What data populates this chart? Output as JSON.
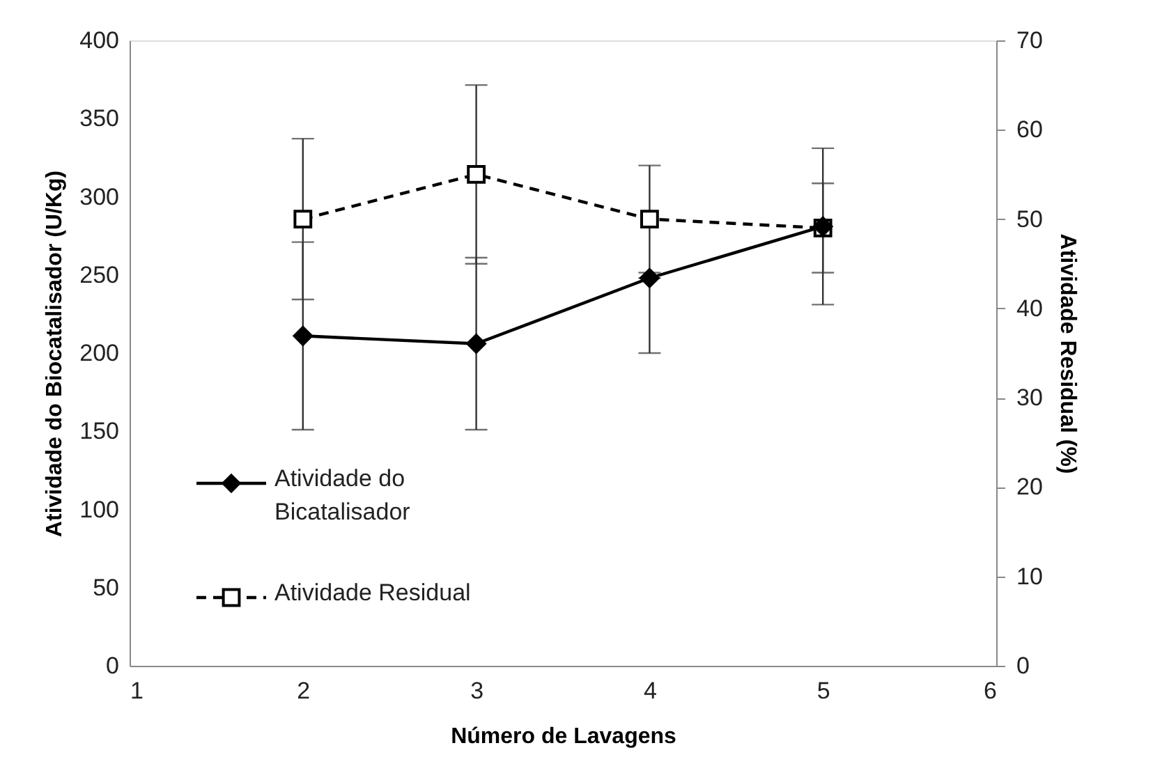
{
  "chart_data": {
    "type": "line",
    "xlabel": "Número de Lavagens",
    "ylabel": "Atividade do Biocatalisador (U/Kg)",
    "y2label": "Atividade Residual (%)",
    "x": [
      2,
      3,
      4,
      5
    ],
    "xlim": [
      1,
      6
    ],
    "xticks": [
      1,
      2,
      3,
      4,
      5,
      6
    ],
    "ylim": [
      0,
      400
    ],
    "yticks": [
      0,
      50,
      100,
      150,
      200,
      250,
      300,
      350,
      400
    ],
    "y2lim": [
      0,
      70
    ],
    "y2ticks": [
      0,
      10,
      20,
      30,
      40,
      50,
      60,
      70
    ],
    "grid": false,
    "legend": "left",
    "series": [
      {
        "name": "Atividade do Bicatalisador",
        "color": "#000000",
        "values": [
          211,
          206,
          248,
          281
        ],
        "errors": [
          60,
          55,
          [
            200,
            248
          ],
          50
        ],
        "marker": "diamond",
        "line_style": "solid"
      },
      {
        "name": "Atividade Residual",
        "color": "#000000",
        "values": [
          50,
          55,
          50,
          49
        ],
        "errors": [
          9,
          10,
          6,
          5
        ],
        "marker": "square",
        "line_style": "dashed",
        "axis": "y2"
      }
    ]
  }
}
